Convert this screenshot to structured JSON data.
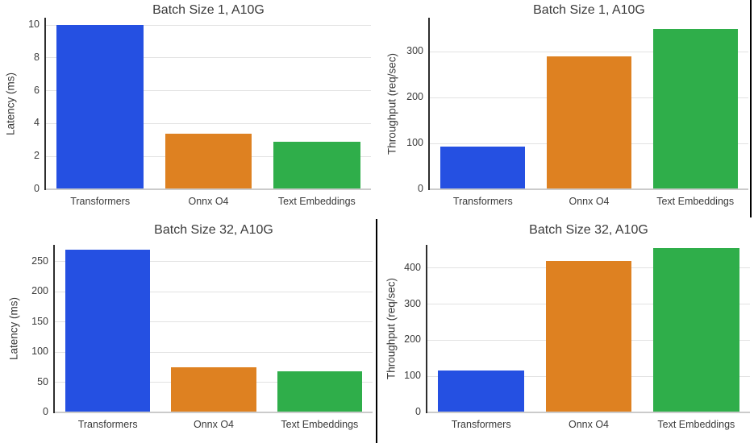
{
  "figure": {
    "background": "#ffffff",
    "divider_color": "#000000",
    "grid_color": "#e2e2e2",
    "axis_line_color": "#2e2e2e",
    "text_color": "#3a3a3a"
  },
  "palette": {
    "transformers_blue": "#2550e2",
    "onnx_orange": "#de8121",
    "text_embeddings_green": "#2fae4a"
  },
  "chart_data": [
    {
      "type": "bar",
      "title": "Batch Size 1, A10G",
      "ylabel": "Latency (ms)",
      "xlabel": "",
      "categories": [
        "Transformers",
        "Onnx O4",
        "Text Embeddings"
      ],
      "values": [
        10.0,
        3.4,
        2.9
      ],
      "yticks": [
        0,
        2,
        4,
        6,
        8,
        10
      ],
      "ylim": [
        0,
        10.45
      ],
      "grid": true,
      "legend": "none",
      "bar_colors": [
        "#2550e2",
        "#de8121",
        "#2fae4a"
      ]
    },
    {
      "type": "bar",
      "title": "Batch Size 1, A10G",
      "ylabel": "Throughput (req/sec)",
      "xlabel": "",
      "categories": [
        "Transformers",
        "Onnx O4",
        "Text Embeddings"
      ],
      "values": [
        93,
        290,
        350
      ],
      "yticks": [
        0,
        100,
        200,
        300
      ],
      "ylim": [
        0,
        374
      ],
      "grid": true,
      "legend": "none",
      "bar_colors": [
        "#2550e2",
        "#de8121",
        "#2fae4a"
      ]
    },
    {
      "type": "bar",
      "title": "Batch Size 32, A10G",
      "ylabel": "Latency (ms)",
      "xlabel": "",
      "categories": [
        "Transformers",
        "Onnx O4",
        "Text Embeddings"
      ],
      "values": [
        270,
        75,
        68
      ],
      "yticks": [
        0,
        50,
        100,
        150,
        200,
        250
      ],
      "ylim": [
        0,
        278
      ],
      "grid": true,
      "legend": "none",
      "bar_colors": [
        "#2550e2",
        "#de8121",
        "#2fae4a"
      ]
    },
    {
      "type": "bar",
      "title": "Batch Size 32, A10G",
      "ylabel": "Throughput (req/sec)",
      "xlabel": "",
      "categories": [
        "Transformers",
        "Onnx O4",
        "Text Embeddings"
      ],
      "values": [
        115,
        420,
        455
      ],
      "yticks": [
        0,
        100,
        200,
        300,
        400
      ],
      "ylim": [
        0,
        464
      ],
      "grid": true,
      "legend": "none",
      "bar_colors": [
        "#2550e2",
        "#de8121",
        "#2fae4a"
      ]
    }
  ]
}
